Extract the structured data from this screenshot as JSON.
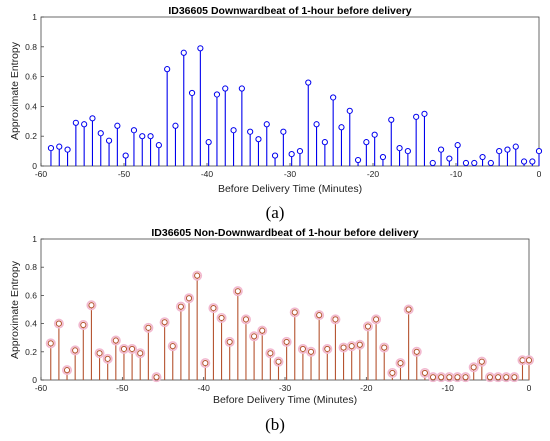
{
  "chart_data": [
    {
      "type": "stem",
      "panel_label": "(a)",
      "title": "ID36605 Downwardbeat of 1-hour before delivery",
      "xlabel": "Before Delivery Time (Minutes)",
      "ylabel": "Approximate Entropy",
      "xlim": [
        -60,
        0
      ],
      "ylim": [
        0,
        1
      ],
      "xticks": [
        -60,
        -50,
        -40,
        -30,
        -20,
        -10,
        0
      ],
      "yticks": [
        0,
        0.2,
        0.4,
        0.6,
        0.8,
        1
      ],
      "xtick_labels": [
        "-60",
        "-50",
        "-40",
        "-30",
        "-20",
        "-10",
        "0"
      ],
      "ytick_labels": [
        "0",
        "0.2",
        "0.4",
        "0.6",
        "0.8",
        "1"
      ],
      "color": "#0000ee",
      "x": [
        -58.8,
        -57.8,
        -56.8,
        -55.8,
        -54.8,
        -53.8,
        -52.8,
        -51.8,
        -50.8,
        -49.8,
        -48.8,
        -47.8,
        -46.8,
        -45.8,
        -44.8,
        -43.8,
        -42.8,
        -41.8,
        -40.8,
        -39.8,
        -38.8,
        -37.8,
        -36.8,
        -35.8,
        -34.8,
        -33.8,
        -32.8,
        -31.8,
        -30.8,
        -29.8,
        -28.8,
        -27.8,
        -26.8,
        -25.8,
        -24.8,
        -23.8,
        -22.8,
        -21.8,
        -20.8,
        -19.8,
        -18.8,
        -17.8,
        -16.8,
        -15.8,
        -14.8,
        -13.8,
        -12.8,
        -11.8,
        -10.8,
        -9.8,
        -8.8,
        -7.8,
        -6.8,
        -5.8,
        -4.8,
        -3.8,
        -2.8,
        -1.8,
        -0.8,
        0
      ],
      "values": [
        0.12,
        0.13,
        0.11,
        0.29,
        0.28,
        0.32,
        0.22,
        0.17,
        0.27,
        0.07,
        0.24,
        0.2,
        0.2,
        0.14,
        0.65,
        0.27,
        0.76,
        0.49,
        0.79,
        0.16,
        0.48,
        0.52,
        0.24,
        0.52,
        0.23,
        0.18,
        0.28,
        0.07,
        0.23,
        0.08,
        0.1,
        0.56,
        0.28,
        0.16,
        0.46,
        0.26,
        0.37,
        0.04,
        0.16,
        0.21,
        0.06,
        0.31,
        0.12,
        0.1,
        0.33,
        0.35,
        0.02,
        0.11,
        0.05,
        0.14,
        0.02,
        0.02,
        0.06,
        0.02,
        0.1,
        0.11,
        0.13,
        0.03,
        0.03,
        0.1
      ]
    },
    {
      "type": "stem",
      "panel_label": "(b)",
      "title": "ID36605 Non-Downwardbeat of 1-hour before delivery",
      "xlabel": "Before Delivery Time (Minutes)",
      "ylabel": "Approximate Entropy",
      "xlim": [
        -60,
        0
      ],
      "ylim": [
        0,
        1
      ],
      "xticks": [
        -60,
        -50,
        -40,
        -30,
        -20,
        -10,
        0
      ],
      "yticks": [
        0,
        0.2,
        0.4,
        0.6,
        0.8,
        1
      ],
      "xtick_labels": [
        "-60",
        "-50",
        "-40",
        "-30",
        "-20",
        "-10",
        "0"
      ],
      "ytick_labels": [
        "0",
        "0.2",
        "0.4",
        "0.6",
        "0.8",
        "1"
      ],
      "color": "#b5532f",
      "x": [
        -58.8,
        -57.8,
        -56.8,
        -55.8,
        -54.8,
        -53.8,
        -52.8,
        -51.8,
        -50.8,
        -49.8,
        -48.8,
        -47.8,
        -46.8,
        -45.8,
        -44.8,
        -43.8,
        -42.8,
        -41.8,
        -40.8,
        -39.8,
        -38.8,
        -37.8,
        -36.8,
        -35.8,
        -34.8,
        -33.8,
        -32.8,
        -31.8,
        -30.8,
        -29.8,
        -28.8,
        -27.8,
        -26.8,
        -25.8,
        -24.8,
        -23.8,
        -22.8,
        -21.8,
        -20.8,
        -19.8,
        -18.8,
        -17.8,
        -16.8,
        -15.8,
        -14.8,
        -13.8,
        -12.8,
        -11.8,
        -10.8,
        -9.8,
        -8.8,
        -7.8,
        -6.8,
        -5.8,
        -4.8,
        -3.8,
        -2.8,
        -1.8,
        -0.8,
        0
      ],
      "values": [
        0.26,
        0.4,
        0.07,
        0.21,
        0.39,
        0.53,
        0.19,
        0.15,
        0.28,
        0.22,
        0.22,
        0.19,
        0.37,
        0.02,
        0.41,
        0.24,
        0.52,
        0.58,
        0.74,
        0.12,
        0.51,
        0.44,
        0.27,
        0.63,
        0.43,
        0.31,
        0.35,
        0.19,
        0.13,
        0.27,
        0.48,
        0.22,
        0.2,
        0.46,
        0.22,
        0.43,
        0.23,
        0.24,
        0.25,
        0.38,
        0.43,
        0.23,
        0.05,
        0.12,
        0.5,
        0.2,
        0.05,
        0.02,
        0.02,
        0.02,
        0.02,
        0.02,
        0.09,
        0.13,
        0.02,
        0.02,
        0.02,
        0.02,
        0.14,
        0.14
      ]
    }
  ]
}
